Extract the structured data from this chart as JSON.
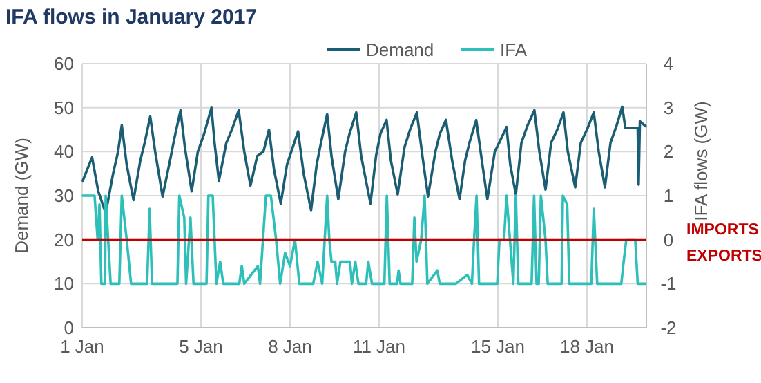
{
  "chart_data": {
    "type": "line",
    "title": "IFA flows in January 2017",
    "ylabel": "Demand (GW)",
    "y2label": "IFA flows (GW)",
    "xlim": [
      "2017-01-01T00:00",
      "2017-01-20T00:00"
    ],
    "xticks": [
      {
        "value": "2017-01-01",
        "label": "1 Jan"
      },
      {
        "value": "2017-01-05",
        "label": "5 Jan"
      },
      {
        "value": "2017-01-08",
        "label": "8 Jan"
      },
      {
        "value": "2017-01-11",
        "label": "11 Jan"
      },
      {
        "value": "2017-01-15",
        "label": "15 Jan"
      },
      {
        "value": "2017-01-18",
        "label": "18 Jan"
      }
    ],
    "ylim": [
      0,
      60
    ],
    "yticks": [
      0,
      10,
      20,
      30,
      40,
      50,
      60
    ],
    "y2lim": [
      -2,
      4
    ],
    "y2ticks": [
      -2,
      -1,
      0,
      1,
      2,
      3,
      4
    ],
    "grid": true,
    "legend": "top",
    "marker": "none",
    "line_style": "solid",
    "ref_lines": [
      {
        "axis": "y2",
        "value": 0,
        "color": "#c00000"
      }
    ],
    "annotations": [
      "IMPORTS",
      "EXPORTS"
    ],
    "series": [
      {
        "name": "Demand",
        "color": "#1b5e73",
        "x": [
          "2017-01-01T00:30",
          "2017-01-01T08:00",
          "2017-01-01T13:00",
          "2017-01-01T19:00",
          "2017-01-02T01:00",
          "2017-01-02T05:00",
          "2017-01-02T08:00",
          "2017-01-02T12:00",
          "2017-01-02T17:30",
          "2017-01-02T23:00",
          "2017-01-03T02:30",
          "2017-01-03T07:00",
          "2017-01-03T11:00",
          "2017-01-03T17:00",
          "2017-01-03T23:00",
          "2017-01-04T02:30",
          "2017-01-04T07:30",
          "2017-01-04T11:00",
          "2017-01-04T16:30",
          "2017-01-04T21:30",
          "2017-01-05T02:30",
          "2017-01-05T08:30",
          "2017-01-05T11:00",
          "2017-01-05T14:30",
          "2017-01-05T20:30",
          "2017-01-06T01:00",
          "2017-01-06T06:30",
          "2017-01-06T11:00",
          "2017-01-06T16:00",
          "2017-01-06T21:30",
          "2017-01-07T02:30",
          "2017-01-07T07:00",
          "2017-01-07T11:00",
          "2017-01-07T16:30",
          "2017-01-07T21:30",
          "2017-01-08T01:00",
          "2017-01-08T06:30",
          "2017-01-08T11:00",
          "2017-01-08T17:00",
          "2017-01-08T21:30",
          "2017-01-09T01:00",
          "2017-01-09T06:00",
          "2017-01-09T09:30",
          "2017-01-09T15:00",
          "2017-01-09T20:30",
          "2017-01-10T00:00",
          "2017-01-10T05:30",
          "2017-01-10T09:30",
          "2017-01-10T17:00",
          "2017-01-10T21:30",
          "2017-01-11T01:00",
          "2017-01-11T06:00",
          "2017-01-11T09:30",
          "2017-01-11T15:00",
          "2017-01-11T20:30",
          "2017-01-12T01:00",
          "2017-01-12T06:30",
          "2017-01-12T11:00",
          "2017-01-12T15:30",
          "2017-01-12T21:30",
          "2017-01-13T01:00",
          "2017-01-13T06:00",
          "2017-01-13T11:00",
          "2017-01-13T17:00",
          "2017-01-13T21:30",
          "2017-01-14T01:00",
          "2017-01-14T06:30",
          "2017-01-14T11:00",
          "2017-01-14T15:30",
          "2017-01-14T21:30",
          "2017-01-15T01:00",
          "2017-01-15T07:00",
          "2017-01-15T10:00",
          "2017-01-15T14:30",
          "2017-01-15T19:00",
          "2017-01-16T00:00",
          "2017-01-16T05:30",
          "2017-01-16T09:30",
          "2017-01-16T14:30",
          "2017-01-16T19:00",
          "2017-01-17T00:00",
          "2017-01-17T05:00",
          "2017-01-17T08:30",
          "2017-01-17T14:30",
          "2017-01-17T19:00",
          "2017-01-18T00:00",
          "2017-01-18T05:30",
          "2017-01-18T09:30",
          "2017-01-18T14:30",
          "2017-01-18T19:00",
          "2017-01-19T00:00",
          "2017-01-19T04:30",
          "2017-01-19T07:00",
          "2017-01-19T17:00",
          "2017-01-19T17:45",
          "2017-01-19T18:45",
          "2017-01-19T23:15"
        ],
        "values": [
          33.4,
          38.7,
          31,
          26,
          35,
          40,
          46,
          37,
          29,
          38,
          42,
          48,
          40,
          29.8,
          38,
          43,
          49.4,
          41,
          31,
          40,
          44,
          50,
          42,
          33.4,
          42,
          45,
          49.4,
          40,
          32.3,
          39,
          40,
          45,
          36,
          28.2,
          37,
          40,
          44.6,
          35,
          26.7,
          37,
          42,
          48.5,
          39,
          29.2,
          40,
          44,
          48.9,
          39,
          28.2,
          39,
          44,
          47.2,
          38,
          30.3,
          41,
          45,
          48.9,
          39,
          29.8,
          40,
          44,
          47.2,
          38,
          29.2,
          38,
          42,
          47.2,
          38,
          29.2,
          40,
          42,
          45.6,
          37,
          30.3,
          42,
          46,
          49.4,
          40,
          31.4,
          42,
          45,
          48.9,
          40,
          31.9,
          42,
          45,
          48.9,
          40,
          31.9,
          42,
          46,
          50.2,
          45.4,
          45.4,
          32.5,
          46.9,
          45.8
        ]
      },
      {
        "name": "IFA",
        "color": "#2ebfb8",
        "axis": "y2",
        "x": [
          "2017-01-01T00:30",
          "2017-01-01T10:00",
          "2017-01-01T12:30",
          "2017-01-01T14:00",
          "2017-01-01T15:30",
          "2017-01-01T18:30",
          "2017-01-01T19:00",
          "2017-01-01T21:00",
          "2017-01-01T23:00",
          "2017-01-02T06:00",
          "2017-01-02T08:00",
          "2017-01-02T12:00",
          "2017-01-02T15:30",
          "2017-01-03T04:30",
          "2017-01-03T06:30",
          "2017-01-03T08:30",
          "2017-01-04T05:00",
          "2017-01-04T06:30",
          "2017-01-04T10:30",
          "2017-01-04T12:00",
          "2017-01-04T15:30",
          "2017-01-04T18:00",
          "2017-01-05T04:30",
          "2017-01-05T06:00",
          "2017-01-05T09:30",
          "2017-01-05T12:30",
          "2017-01-05T15:30",
          "2017-01-05T18:00",
          "2017-01-06T07:00",
          "2017-01-06T09:00",
          "2017-01-06T11:00",
          "2017-01-06T22:00",
          "2017-01-06T23:45",
          "2017-01-07T04:30",
          "2017-01-07T08:30",
          "2017-01-07T12:45",
          "2017-01-07T16:00",
          "2017-01-07T20:00",
          "2017-01-08T00:00",
          "2017-01-08T04:00",
          "2017-01-08T07:30",
          "2017-01-08T18:45",
          "2017-01-08T22:15",
          "2017-01-09T02:00",
          "2017-01-09T04:00",
          "2017-01-09T06:00",
          "2017-01-09T07:45",
          "2017-01-09T09:30",
          "2017-01-09T12:30",
          "2017-01-09T14:00",
          "2017-01-09T16:45",
          "2017-01-10T00:30",
          "2017-01-10T02:00",
          "2017-01-10T04:45",
          "2017-01-10T07:15",
          "2017-01-10T13:30",
          "2017-01-10T15:15",
          "2017-01-10T18:15",
          "2017-01-11T04:15",
          "2017-01-11T06:15",
          "2017-01-11T08:30",
          "2017-01-11T14:30",
          "2017-01-11T15:45",
          "2017-01-11T17:15",
          "2017-01-12T02:45",
          "2017-01-12T04:30",
          "2017-01-12T06:15",
          "2017-01-12T10:00",
          "2017-01-12T12:45",
          "2017-01-12T15:00",
          "2017-01-12T23:00",
          "2017-01-13T01:00",
          "2017-01-13T14:00",
          "2017-01-13T23:15",
          "2017-01-14T03:00",
          "2017-01-14T04:45",
          "2017-01-14T06:45",
          "2017-01-14T08:45",
          "2017-01-14T23:30",
          "2017-01-15T01:15",
          "2017-01-15T05:00",
          "2017-01-15T07:00",
          "2017-01-15T09:45",
          "2017-01-15T12:30",
          "2017-01-15T14:30",
          "2017-01-15T16:30",
          "2017-01-16T03:15",
          "2017-01-16T05:15",
          "2017-01-16T07:15",
          "2017-01-16T09:00",
          "2017-01-16T10:45",
          "2017-01-16T14:30",
          "2017-01-16T16:15",
          "2017-01-17T03:30",
          "2017-01-17T04:30",
          "2017-01-17T08:00",
          "2017-01-17T09:45",
          "2017-01-18T03:30",
          "2017-01-18T05:30",
          "2017-01-18T08:15",
          "2017-01-19T03:45",
          "2017-01-19T05:15",
          "2017-01-19T07:45",
          "2017-01-19T15:00",
          "2017-01-19T17:00",
          "2017-01-19T23:15"
        ],
        "values": [
          1,
          1,
          0,
          0.8,
          -1,
          -1,
          1,
          0,
          -1,
          -1,
          1,
          0,
          -1,
          -1,
          0.7,
          -1,
          -1,
          1,
          0.5,
          -1,
          0.5,
          -1,
          -1,
          1,
          1,
          -1,
          -0.5,
          -1,
          -1,
          -0.6,
          -1,
          -0.6,
          -1,
          1,
          1,
          0,
          -1,
          -0.3,
          -0.6,
          0,
          -1,
          -1,
          -0.5,
          -1,
          0,
          1,
          0,
          -0.5,
          -0.5,
          -1,
          -0.5,
          -0.5,
          -1,
          -0.5,
          -1,
          -1,
          -0.5,
          -1,
          -1,
          1,
          -1,
          -1,
          -0.7,
          -1,
          -1,
          0.5,
          -0.5,
          0,
          1,
          -1,
          -0.7,
          -1,
          -1,
          -0.8,
          -1,
          0,
          1,
          -1,
          -1,
          0,
          0,
          1,
          0,
          -1,
          1,
          -1,
          -1,
          1,
          -1,
          -1,
          1,
          0,
          -1,
          -1,
          1,
          0.8,
          -1,
          -1,
          0.7,
          -1,
          -1,
          -0.6,
          0,
          0,
          -1,
          -1
        ]
      }
    ]
  }
}
